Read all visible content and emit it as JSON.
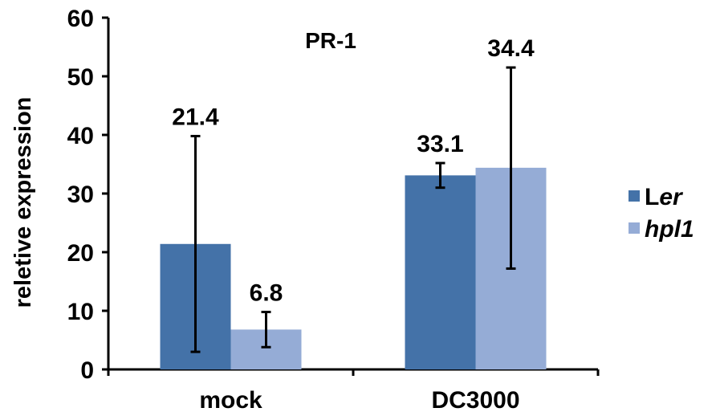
{
  "chart_data": {
    "type": "bar",
    "title": "PR-1",
    "ylabel": "reletive expression",
    "xlabel": "",
    "ylim": [
      0,
      60
    ],
    "yticks": [
      0,
      10,
      20,
      30,
      40,
      50,
      60
    ],
    "categories": [
      "mock",
      "DC3000"
    ],
    "series": [
      {
        "name": "Ler",
        "name_parts": [
          "L",
          "er"
        ],
        "color": "#4472a8",
        "values": [
          21.4,
          33.1
        ],
        "value_labels": [
          "21.4",
          "33.1"
        ],
        "error_low": [
          3.0,
          31.0
        ],
        "error_high": [
          39.8,
          35.2
        ]
      },
      {
        "name": "hpl1",
        "color": "#95acd6",
        "values": [
          6.8,
          34.4
        ],
        "value_labels": [
          "6.8",
          "34.4"
        ],
        "error_low": [
          3.8,
          17.2
        ],
        "error_high": [
          9.8,
          51.5
        ]
      }
    ],
    "grid": false,
    "legend_position": "right"
  }
}
